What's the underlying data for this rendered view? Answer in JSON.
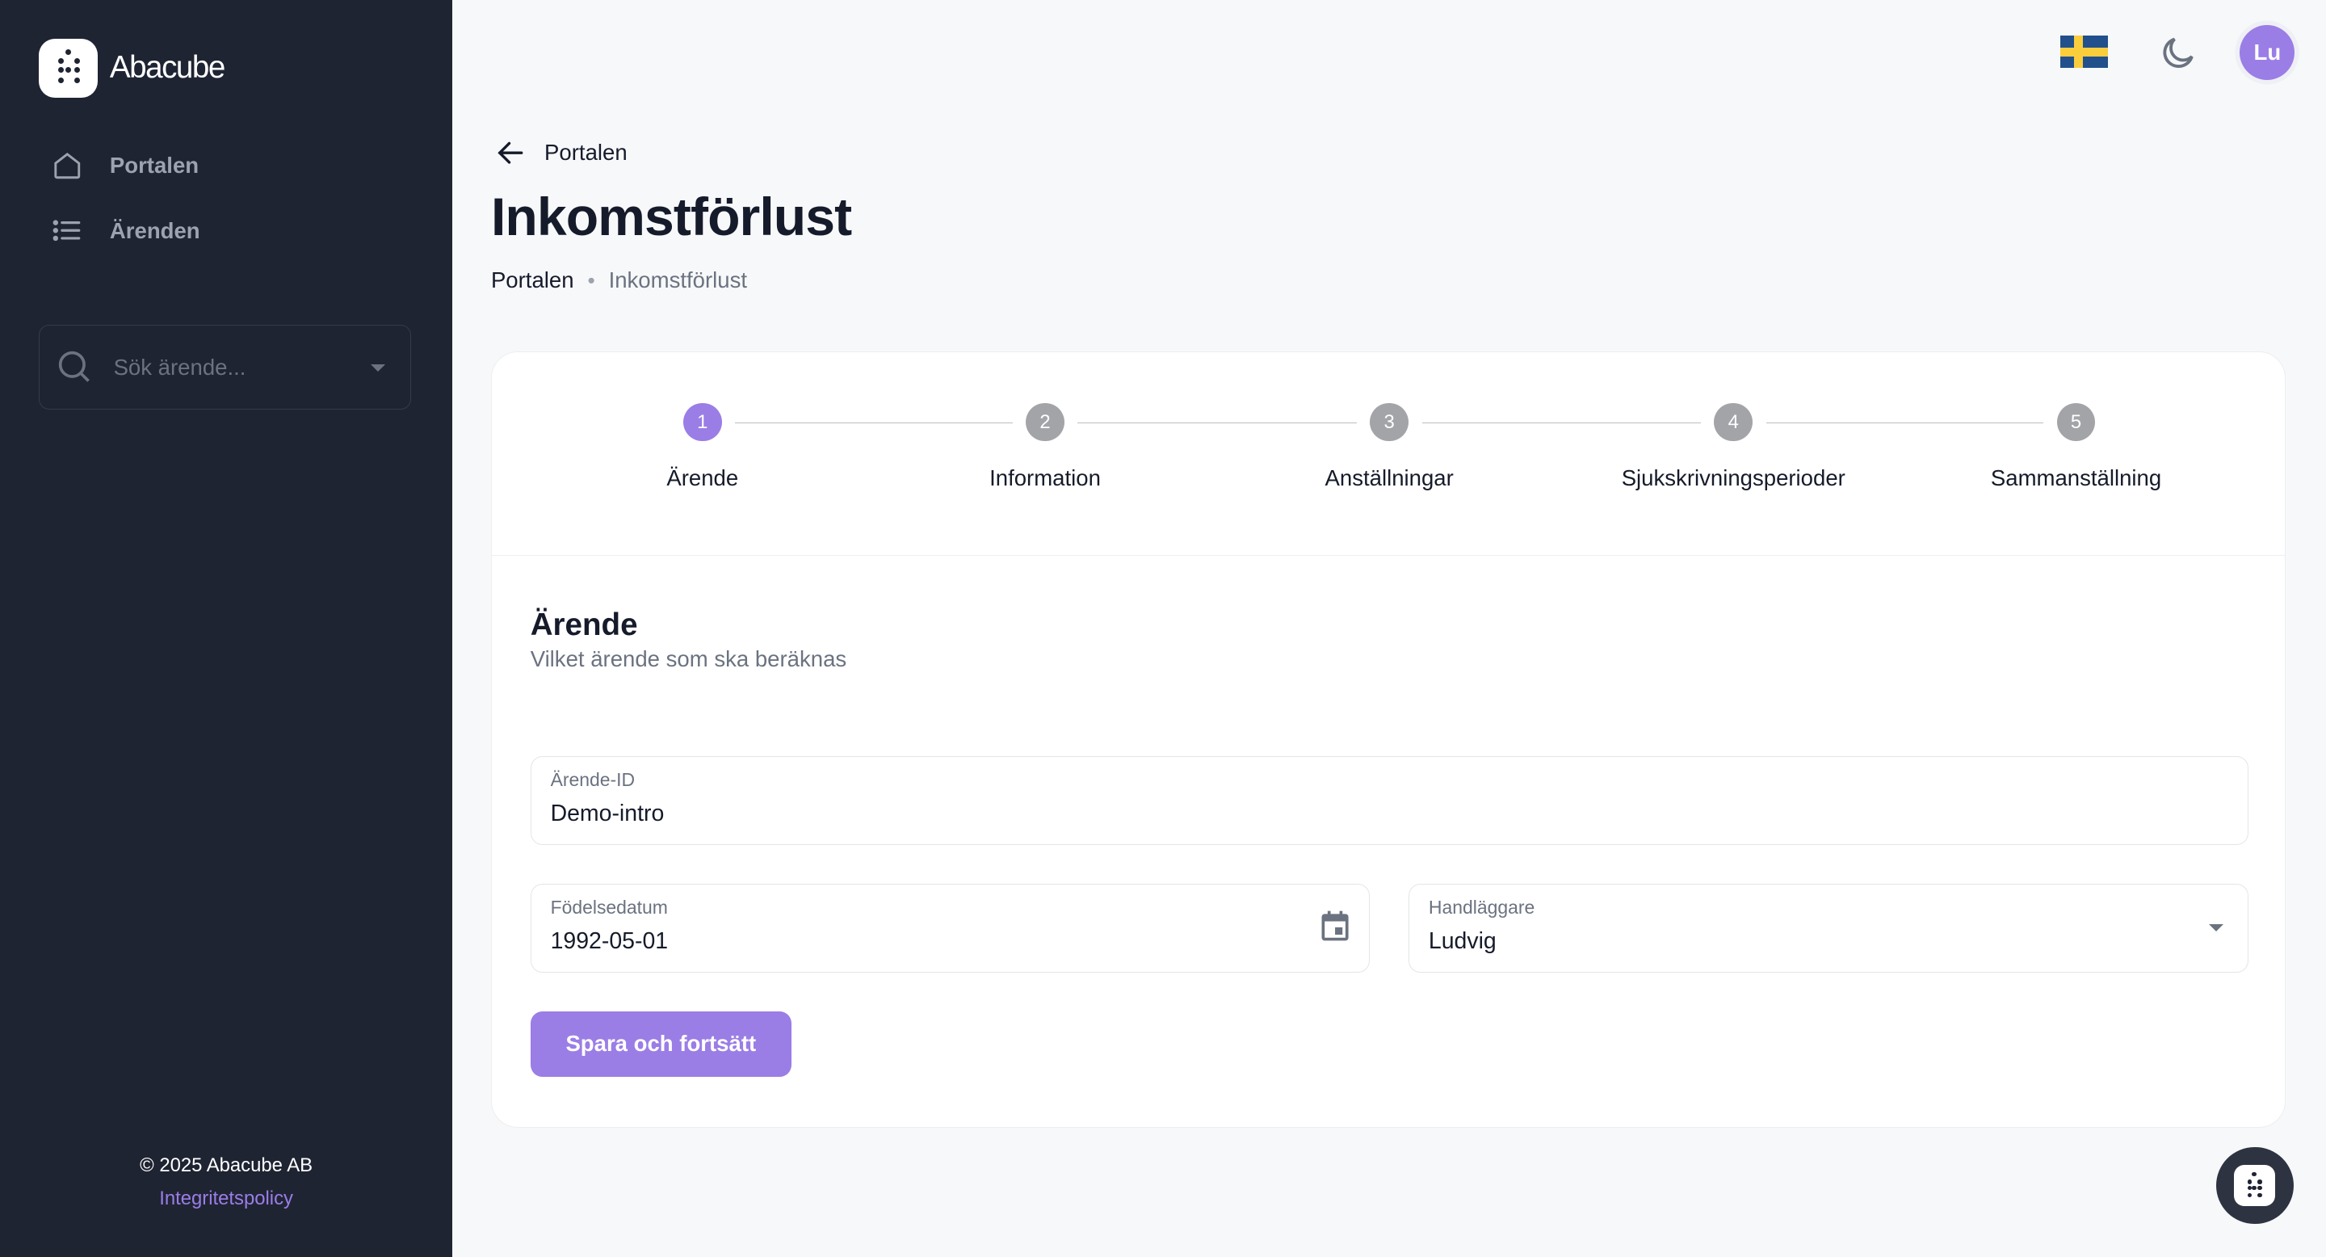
{
  "app": {
    "name": "Abacube"
  },
  "sidebar": {
    "items": [
      {
        "label": "Portalen",
        "icon": "home-icon"
      },
      {
        "label": "Ärenden",
        "icon": "list-icon"
      }
    ],
    "search": {
      "placeholder": "Sök ärende..."
    },
    "footer": {
      "copyright": "© 2025 Abacube AB",
      "privacy": "Integritetspolicy"
    }
  },
  "topbar": {
    "language": "Svenska",
    "avatar_initials": "Lu"
  },
  "header": {
    "back_label": "Portalen",
    "title": "Inkomstförlust",
    "breadcrumb": [
      "Portalen",
      "Inkomstförlust"
    ]
  },
  "stepper": {
    "steps": [
      {
        "number": "1",
        "label": "Ärende",
        "active": true
      },
      {
        "number": "2",
        "label": "Information"
      },
      {
        "number": "3",
        "label": "Anställningar"
      },
      {
        "number": "4",
        "label": "Sjukskrivningsperioder"
      },
      {
        "number": "5",
        "label": "Sammanställning"
      }
    ]
  },
  "form": {
    "title": "Ärende",
    "subtitle": "Vilket ärende som ska beräknas",
    "case_id": {
      "label": "Ärende-ID",
      "value": "Demo-intro"
    },
    "birthdate": {
      "label": "Födelsedatum",
      "value": "1992-05-01"
    },
    "handler": {
      "label": "Handläggare",
      "value": "Ludvig"
    },
    "submit": "Spara och fortsätt"
  },
  "colors": {
    "accent": "#9b7de6",
    "sidebar": "#1f2433"
  }
}
